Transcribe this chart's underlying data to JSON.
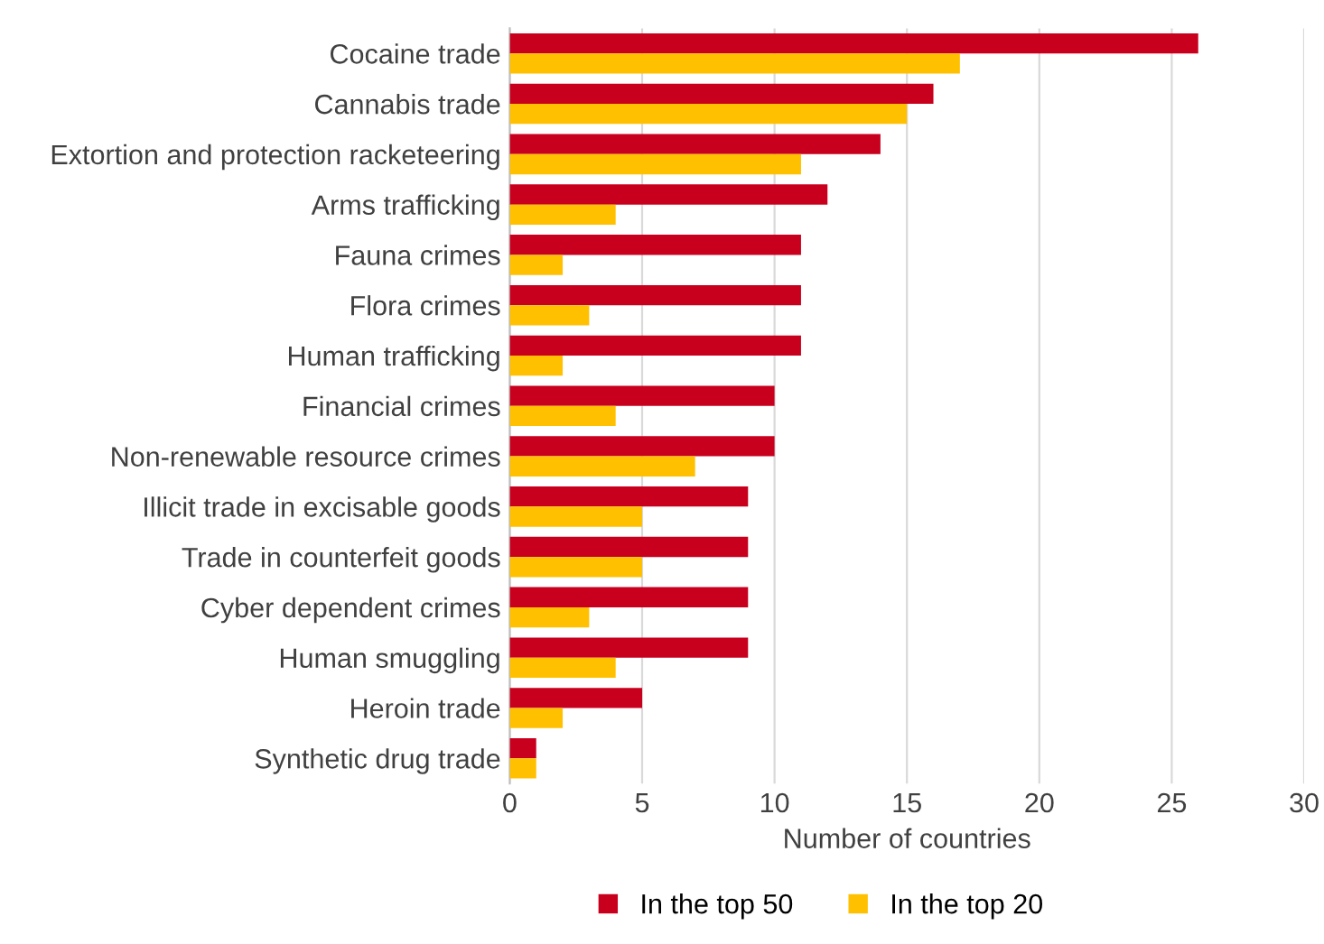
{
  "chart_data": {
    "type": "bar",
    "orientation": "horizontal",
    "categories": [
      "Cocaine trade",
      "Cannabis trade",
      "Extortion and protection racketeering",
      "Arms trafficking",
      "Fauna crimes",
      "Flora crimes",
      "Human trafficking",
      "Financial crimes",
      "Non-renewable resource crimes",
      "Illicit trade in excisable goods",
      "Trade in counterfeit goods",
      "Cyber dependent crimes",
      "Human smuggling",
      "Heroin trade",
      "Synthetic drug trade"
    ],
    "series": [
      {
        "name": "In the top 50",
        "color": "#c8001e",
        "values": [
          26,
          16,
          14,
          12,
          11,
          11,
          11,
          10,
          10,
          9,
          9,
          9,
          9,
          5,
          1
        ]
      },
      {
        "name": "In the top 20",
        "color": "#ffc000",
        "values": [
          17,
          15,
          11,
          4,
          2,
          3,
          2,
          4,
          7,
          5,
          5,
          3,
          4,
          2,
          1
        ]
      }
    ],
    "xlabel": "Number of countries",
    "xlim": [
      0,
      30
    ],
    "xticks": [
      0,
      5,
      10,
      15,
      20,
      25,
      30
    ],
    "grid": "x",
    "legend": "bottom"
  }
}
